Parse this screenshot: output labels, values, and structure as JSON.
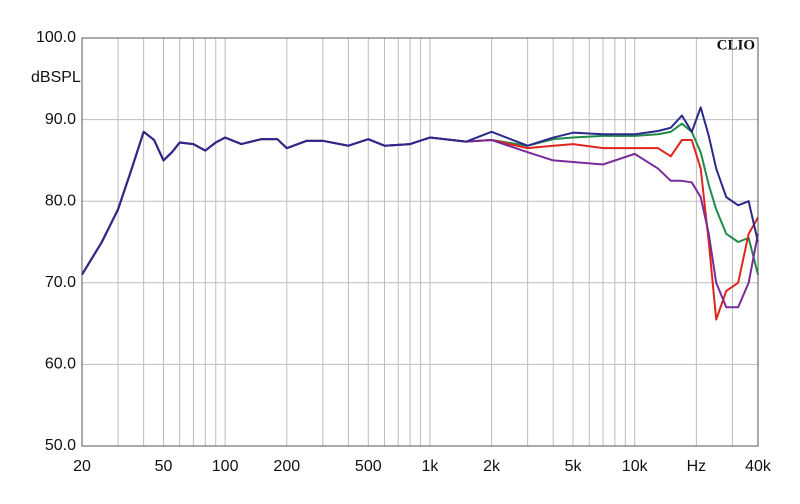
{
  "chart_data": {
    "type": "line",
    "brand": "CLIO",
    "y_label": "dBSPL",
    "log_x": true,
    "grid": true,
    "x": [
      20,
      25,
      30,
      35,
      40,
      45,
      50,
      55,
      60,
      70,
      80,
      90,
      100,
      120,
      150,
      180,
      200,
      250,
      300,
      400,
      500,
      600,
      800,
      1000,
      1500,
      2000,
      3000,
      4000,
      5000,
      7000,
      10000,
      13000,
      15000,
      17000,
      19000,
      21000,
      23000,
      25000,
      28000,
      32000,
      36000,
      40000
    ],
    "series": [
      {
        "color": "#1f8a4a",
        "values": [
          71,
          75,
          79,
          84,
          88.5,
          87.5,
          85,
          86,
          87.2,
          87,
          86.2,
          87.2,
          87.8,
          87,
          87.6,
          87.6,
          86.5,
          87.4,
          87.4,
          86.8,
          87.6,
          86.8,
          87,
          87.8,
          87.3,
          87.5,
          86.8,
          87.6,
          87.8,
          88,
          88,
          88.2,
          88.5,
          89.5,
          88.5,
          86,
          82,
          79,
          76,
          75,
          75.5,
          71
        ]
      },
      {
        "color": "#e0261c",
        "values": [
          71,
          75,
          79,
          84,
          88.5,
          87.5,
          85,
          86,
          87.2,
          87,
          86.2,
          87.2,
          87.8,
          87,
          87.6,
          87.6,
          86.5,
          87.4,
          87.4,
          86.8,
          87.6,
          86.8,
          87,
          87.8,
          87.3,
          87.5,
          86.5,
          86.8,
          87,
          86.5,
          86.5,
          86.5,
          85.5,
          87.5,
          87.5,
          84,
          75,
          65.5,
          69,
          70,
          76,
          78
        ]
      },
      {
        "color": "#7a2a9a",
        "values": [
          71,
          75,
          79,
          84,
          88.5,
          87.5,
          85,
          86,
          87.2,
          87,
          86.2,
          87.2,
          87.8,
          87,
          87.6,
          87.6,
          86.5,
          87.4,
          87.4,
          86.8,
          87.6,
          86.8,
          87,
          87.8,
          87.3,
          87.5,
          86,
          85,
          84.8,
          84.5,
          85.8,
          84,
          82.5,
          82.5,
          82.3,
          80.5,
          76,
          70,
          67,
          67,
          70,
          76
        ]
      },
      {
        "color": "#2b2a8c",
        "values": [
          71,
          75,
          79,
          84,
          88.5,
          87.5,
          85,
          86,
          87.2,
          87,
          86.2,
          87.2,
          87.8,
          87,
          87.6,
          87.6,
          86.5,
          87.4,
          87.4,
          86.8,
          87.6,
          86.8,
          87,
          87.8,
          87.3,
          88.5,
          86.8,
          87.8,
          88.4,
          88.2,
          88.2,
          88.6,
          89,
          90.5,
          88.5,
          91.5,
          88,
          84,
          80.5,
          79.5,
          80,
          75
        ]
      }
    ],
    "xlim": [
      20,
      40000
    ],
    "xticks": [
      20,
      50,
      100,
      200,
      500,
      {
        "value": 1000,
        "label": "1k"
      },
      {
        "value": 2000,
        "label": "2k"
      },
      {
        "value": 5000,
        "label": "5k"
      },
      {
        "value": 10000,
        "label": "10k"
      },
      {
        "value": 20000,
        "label": "Hz"
      },
      {
        "value": 40000,
        "label": "40k"
      }
    ],
    "xgrid": [
      30,
      40,
      60,
      70,
      80,
      90,
      300,
      400,
      600,
      700,
      800,
      900,
      3000,
      4000,
      6000,
      7000,
      8000,
      9000,
      30000
    ],
    "ylim": [
      50,
      100
    ],
    "yticks": [
      {
        "value": 50,
        "label": "50.0"
      },
      {
        "value": 60,
        "label": "60.0"
      },
      {
        "value": 70,
        "label": "70.0"
      },
      {
        "value": 80,
        "label": "80.0"
      },
      {
        "value": 90,
        "label": "90.0"
      },
      {
        "value": 100,
        "label": "100.0"
      }
    ]
  }
}
